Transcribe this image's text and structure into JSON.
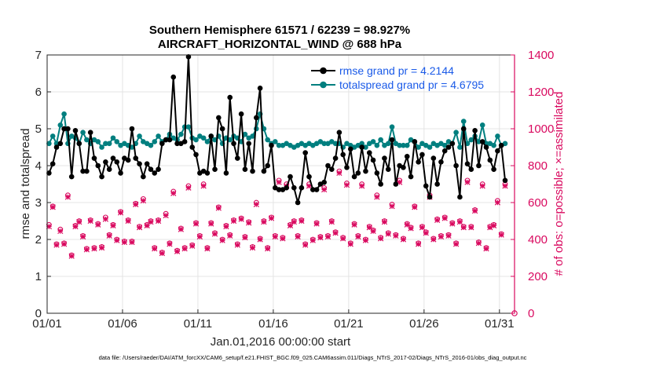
{
  "chart_data": {
    "type": "line",
    "title": "Southern Hemisphere 61571 / 62239 = 98.927%",
    "subtitle": "AIRCRAFT_HORIZONTAL_WIND @ 688 hPa",
    "xlabel": "Jan.01,2016 00:00:00 start",
    "ylabel": "rmse and totalspread",
    "ylabel_right": "# of obs: o=possible; ×=assimilated",
    "footnote": "data file: /Users/raeder/DAI/ATM_forcXX/CAM6_setup/f.e21.FHIST_BGC.f09_025.CAM6assim.011/Diags_NTrS_2017-02/Diags_NTrS_2016-01/obs_diag_output.nc",
    "x_tick_labels": [
      "01/01",
      "01/06",
      "01/11",
      "01/16",
      "01/21",
      "01/26",
      "01/31"
    ],
    "x_tick_days": [
      1,
      6,
      11,
      16,
      21,
      26,
      31
    ],
    "xlim": [
      1,
      32
    ],
    "ylim": [
      0,
      7
    ],
    "y_ticks": [
      0,
      1,
      2,
      3,
      4,
      5,
      6,
      7
    ],
    "ylim_right": [
      0,
      1400
    ],
    "y_ticks_right": [
      0,
      200,
      400,
      600,
      800,
      1000,
      1200,
      1400
    ],
    "grid": true,
    "legend_location": "top-right",
    "colors": {
      "rmse": "#000000",
      "totalspread": "#007f7f",
      "obs": "#d9095f",
      "right_axis": "#d9095f",
      "legend_text": "#1a5ae8"
    },
    "series": [
      {
        "name": "rmse grand pr = 4.2144",
        "x": [
          1.125,
          1.375,
          1.625,
          1.875,
          2.125,
          2.375,
          2.625,
          2.875,
          3.125,
          3.375,
          3.625,
          3.875,
          4.125,
          4.375,
          4.625,
          4.875,
          5.125,
          5.375,
          5.625,
          5.875,
          6.125,
          6.375,
          6.625,
          6.875,
          7.125,
          7.375,
          7.625,
          7.875,
          8.125,
          8.375,
          8.625,
          8.875,
          9.125,
          9.375,
          9.625,
          9.875,
          10.125,
          10.375,
          10.625,
          10.875,
          11.125,
          11.375,
          11.625,
          11.875,
          12.125,
          12.375,
          12.625,
          12.875,
          13.125,
          13.375,
          13.625,
          13.875,
          14.125,
          14.375,
          14.625,
          14.875,
          15.125,
          15.375,
          15.625,
          15.875,
          16.125,
          16.375,
          16.625,
          16.875,
          17.125,
          17.375,
          17.625,
          17.875,
          18.125,
          18.375,
          18.625,
          18.875,
          19.125,
          19.375,
          19.625,
          19.875,
          20.125,
          20.375,
          20.625,
          20.875,
          21.125,
          21.375,
          21.625,
          21.875,
          22.125,
          22.375,
          22.625,
          22.875,
          23.125,
          23.375,
          23.625,
          23.875,
          24.125,
          24.375,
          24.625,
          24.875,
          25.125,
          25.375,
          25.625,
          25.875,
          26.125,
          26.375,
          26.625,
          26.875,
          27.125,
          27.375,
          27.625,
          27.875,
          28.125,
          28.375,
          28.625,
          28.875,
          29.125,
          29.375,
          29.625,
          29.875,
          30.125,
          30.375,
          30.625,
          30.875,
          31.125,
          31.375
        ],
        "values": [
          3.8,
          4.05,
          4.5,
          4.6,
          5.0,
          5.0,
          3.7,
          4.95,
          4.6,
          3.85,
          3.85,
          4.9,
          4.2,
          4.0,
          3.7,
          4.1,
          3.9,
          4.2,
          4.1,
          3.8,
          4.2,
          4.15,
          5.0,
          4.2,
          4.05,
          3.7,
          4.05,
          3.9,
          3.8,
          3.9,
          4.6,
          4.7,
          4.7,
          6.4,
          4.6,
          4.6,
          4.65,
          6.95,
          4.5,
          4.3,
          3.8,
          3.85,
          3.8,
          4.8,
          3.9,
          5.3,
          5.0,
          3.8,
          5.85,
          4.6,
          4.2,
          5.4,
          3.9,
          4.6,
          3.85,
          5.3,
          6.1,
          3.85,
          4.0,
          4.55,
          3.4,
          3.35,
          3.35,
          3.4,
          3.7,
          3.4,
          3.0,
          3.4,
          4.35,
          3.7,
          3.35,
          3.35,
          3.5,
          3.55,
          4.0,
          3.9,
          4.2,
          4.9,
          4.3,
          3.95,
          4.45,
          3.7,
          3.8,
          4.5,
          3.85,
          4.35,
          4.15,
          3.8,
          3.5,
          4.2,
          3.9,
          4.7,
          3.5,
          4.0,
          3.95,
          4.25,
          3.7,
          4.65,
          4.1,
          4.3,
          3.45,
          3.15,
          4.2,
          3.5,
          4.1,
          4.4,
          4.5,
          4.6,
          4.0,
          3.15,
          5.0,
          4.05,
          3.9,
          4.95,
          4.0,
          4.65,
          4.5,
          4.15,
          3.9,
          4.4,
          4.55,
          3.6
        ]
      },
      {
        "name": "totalspread grand pr = 4.6795",
        "x": [
          1.125,
          1.375,
          1.625,
          1.875,
          2.125,
          2.375,
          2.625,
          2.875,
          3.125,
          3.375,
          3.625,
          3.875,
          4.125,
          4.375,
          4.625,
          4.875,
          5.125,
          5.375,
          5.625,
          5.875,
          6.125,
          6.375,
          6.625,
          6.875,
          7.125,
          7.375,
          7.625,
          7.875,
          8.125,
          8.375,
          8.625,
          8.875,
          9.125,
          9.375,
          9.625,
          9.875,
          10.125,
          10.375,
          10.625,
          10.875,
          11.125,
          11.375,
          11.625,
          11.875,
          12.125,
          12.375,
          12.625,
          12.875,
          13.125,
          13.375,
          13.625,
          13.875,
          14.125,
          14.375,
          14.625,
          14.875,
          15.125,
          15.375,
          15.625,
          15.875,
          16.125,
          16.375,
          16.625,
          16.875,
          17.125,
          17.375,
          17.625,
          17.875,
          18.125,
          18.375,
          18.625,
          18.875,
          19.125,
          19.375,
          19.625,
          19.875,
          20.125,
          20.375,
          20.625,
          20.875,
          21.125,
          21.375,
          21.625,
          21.875,
          22.125,
          22.375,
          22.625,
          22.875,
          23.125,
          23.375,
          23.625,
          23.875,
          24.125,
          24.375,
          24.625,
          24.875,
          25.125,
          25.375,
          25.625,
          25.875,
          26.125,
          26.375,
          26.625,
          26.875,
          27.125,
          27.375,
          27.625,
          27.875,
          28.125,
          28.375,
          28.625,
          28.875,
          29.125,
          29.375,
          29.625,
          29.875,
          30.125,
          30.375,
          30.625,
          30.875,
          31.125,
          31.375
        ],
        "values": [
          4.6,
          4.8,
          4.6,
          5.1,
          5.4,
          4.6,
          4.8,
          4.75,
          4.6,
          4.9,
          4.7,
          4.6,
          4.7,
          4.65,
          4.5,
          4.6,
          4.6,
          4.75,
          4.65,
          4.55,
          4.6,
          4.55,
          4.5,
          4.6,
          4.8,
          4.65,
          4.6,
          4.55,
          4.65,
          4.8,
          4.65,
          4.7,
          4.85,
          4.75,
          4.7,
          4.85,
          5.05,
          5.05,
          4.75,
          4.7,
          4.8,
          4.75,
          4.65,
          4.8,
          4.7,
          4.8,
          4.6,
          4.75,
          4.7,
          4.8,
          4.75,
          4.65,
          4.85,
          4.75,
          4.8,
          5.0,
          5.4,
          5.0,
          4.7,
          4.6,
          4.65,
          4.55,
          4.55,
          4.6,
          4.55,
          4.5,
          4.55,
          4.6,
          4.55,
          4.6,
          4.55,
          4.6,
          4.65,
          4.6,
          4.6,
          4.65,
          4.6,
          4.6,
          4.5,
          4.6,
          4.55,
          4.5,
          4.55,
          4.6,
          4.5,
          4.6,
          4.65,
          4.55,
          4.7,
          4.55,
          4.6,
          5.05,
          4.6,
          4.55,
          4.55,
          4.55,
          4.7,
          4.65,
          4.5,
          4.6,
          4.55,
          4.5,
          4.6,
          4.55,
          4.6,
          4.55,
          4.65,
          4.6,
          4.9,
          4.5,
          5.2,
          4.6,
          4.7,
          4.8,
          4.65,
          5.1,
          4.6,
          4.6,
          4.55,
          4.8,
          4.55,
          4.6
        ]
      }
    ],
    "obs_possible": [
      480,
      580,
      375,
      455,
      380,
      640,
      315,
      475,
      500,
      420,
      350,
      505,
      355,
      485,
      360,
      520,
      425,
      480,
      400,
      550,
      390,
      505,
      390,
      595,
      470,
      620,
      480,
      500,
      355,
      505,
      330,
      540,
      380,
      660,
      340,
      460,
      355,
      690,
      370,
      490,
      420,
      700,
      355,
      490,
      435,
      575,
      400,
      475,
      425,
      505,
      375,
      515,
      415,
      495,
      360,
      600,
      405,
      500,
      355,
      520,
      420,
      720,
      410,
      700,
      480,
      500,
      420,
      505,
      375,
      700,
      400,
      490,
      415,
      680,
      420,
      500,
      440,
      770,
      410,
      705,
      380,
      485,
      420,
      700,
      400,
      470,
      450,
      640,
      410,
      500,
      435,
      590,
      425,
      720,
      405,
      485,
      465,
      580,
      380,
      470,
      440,
      640,
      405,
      510,
      420,
      520,
      425,
      490,
      380,
      500,
      470,
      720,
      470,
      560,
      385,
      700,
      355,
      470,
      480,
      610,
      430,
      700
    ],
    "obs_assimilated": [
      470,
      575,
      370,
      445,
      375,
      630,
      310,
      470,
      495,
      415,
      345,
      500,
      350,
      480,
      355,
      510,
      420,
      475,
      395,
      545,
      385,
      500,
      385,
      590,
      465,
      610,
      475,
      495,
      350,
      500,
      325,
      530,
      375,
      650,
      335,
      455,
      350,
      680,
      365,
      485,
      415,
      690,
      350,
      485,
      430,
      570,
      395,
      470,
      420,
      500,
      370,
      510,
      410,
      490,
      355,
      590,
      400,
      495,
      350,
      515,
      415,
      710,
      405,
      690,
      475,
      495,
      415,
      500,
      370,
      690,
      395,
      485,
      410,
      670,
      415,
      495,
      435,
      760,
      405,
      695,
      375,
      480,
      415,
      690,
      395,
      465,
      445,
      630,
      405,
      495,
      430,
      580,
      420,
      710,
      400,
      480,
      460,
      575,
      375,
      465,
      435,
      630,
      400,
      505,
      415,
      515,
      420,
      485,
      375,
      495,
      465,
      710,
      465,
      555,
      380,
      690,
      350,
      465,
      475,
      600,
      425,
      690
    ]
  }
}
